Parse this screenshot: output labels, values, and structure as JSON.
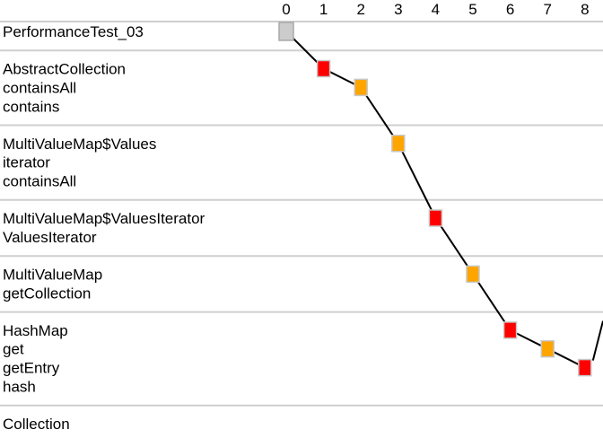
{
  "colors": {
    "root": "#cccccc",
    "root_border": "#a8a8a8",
    "red": "#ff0000",
    "orange": "#ffa500",
    "node_border": "#c8c8c8",
    "separator": "#cfcfcf",
    "edge": "#000000"
  },
  "axis": {
    "ticks": [
      "0",
      "1",
      "2",
      "3",
      "4",
      "5",
      "6",
      "7",
      "8"
    ]
  },
  "groups": [
    {
      "labels": [
        "PerformanceTest_03"
      ]
    },
    {
      "labels": [
        "AbstractCollection",
        "containsAll",
        "contains"
      ]
    },
    {
      "labels": [
        "MultiValueMap$Values",
        "iterator",
        "containsAll"
      ]
    },
    {
      "labels": [
        "MultiValueMap$ValuesIterator",
        "ValuesIterator"
      ]
    },
    {
      "labels": [
        "MultiValueMap",
        "getCollection"
      ]
    },
    {
      "labels": [
        "HashMap",
        "get",
        "getEntry",
        "hash"
      ]
    },
    {
      "labels": [
        "Collection"
      ]
    }
  ],
  "nodes": [
    {
      "step": 0,
      "row": 0,
      "kind": "root"
    },
    {
      "step": 1,
      "row": 1,
      "kind": "red"
    },
    {
      "step": 2,
      "row": 2,
      "kind": "orange"
    },
    {
      "step": 3,
      "row": 4,
      "kind": "orange"
    },
    {
      "step": 4,
      "row": 7,
      "kind": "red"
    },
    {
      "step": 5,
      "row": 9,
      "kind": "orange"
    },
    {
      "step": 6,
      "row": 11,
      "kind": "red"
    },
    {
      "step": 7,
      "row": 12,
      "kind": "orange"
    },
    {
      "step": 8,
      "row": 13,
      "kind": "red"
    }
  ]
}
